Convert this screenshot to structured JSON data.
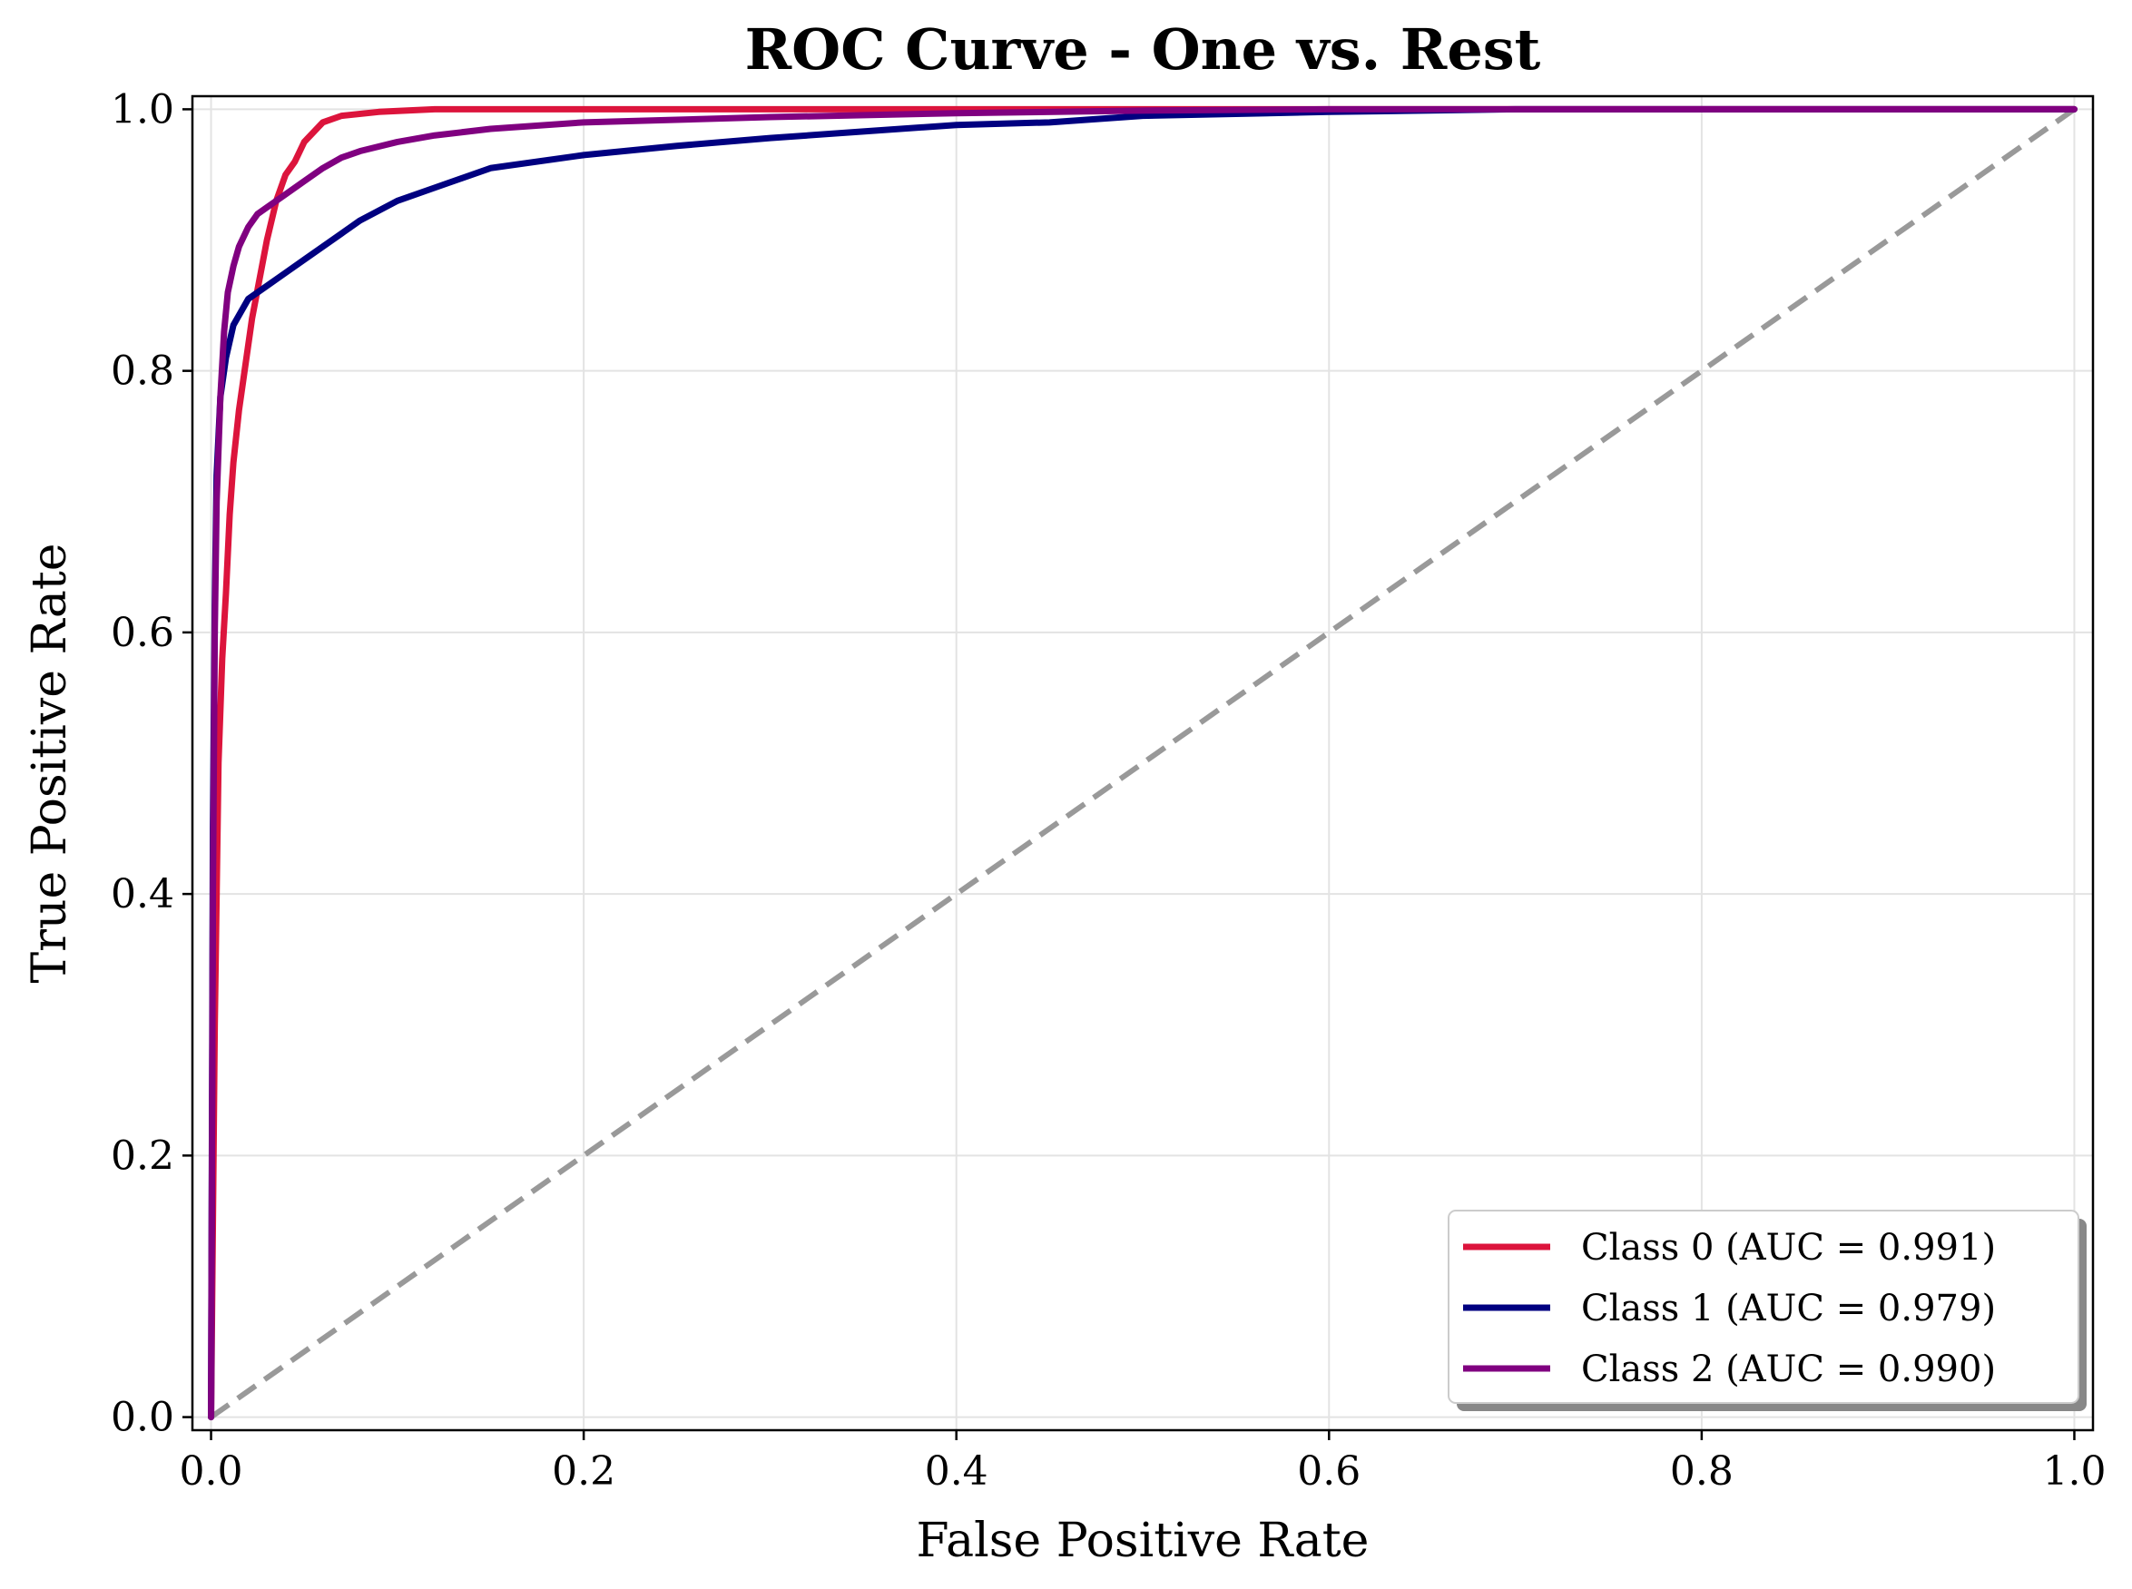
{
  "chart_data": {
    "type": "line",
    "title": "ROC Curve - One vs. Rest",
    "xlabel": "False Positive Rate",
    "ylabel": "True Positive Rate",
    "xlim": [
      -0.01,
      1.01
    ],
    "ylim": [
      -0.01,
      1.01
    ],
    "xticks": [
      "0.0",
      "0.2",
      "0.4",
      "0.6",
      "0.8",
      "1.0"
    ],
    "yticks": [
      "0.0",
      "0.2",
      "0.4",
      "0.6",
      "0.8",
      "1.0"
    ],
    "grid": true,
    "legend_position": "lower-right",
    "series": [
      {
        "name": "Class 0 (AUC = 0.991)",
        "color": "#dc143c",
        "points": [
          [
            0,
            0
          ],
          [
            0.002,
            0.3
          ],
          [
            0.004,
            0.5
          ],
          [
            0.006,
            0.58
          ],
          [
            0.008,
            0.63
          ],
          [
            0.01,
            0.69
          ],
          [
            0.012,
            0.73
          ],
          [
            0.015,
            0.77
          ],
          [
            0.018,
            0.8
          ],
          [
            0.022,
            0.84
          ],
          [
            0.026,
            0.87
          ],
          [
            0.03,
            0.9
          ],
          [
            0.035,
            0.93
          ],
          [
            0.04,
            0.95
          ],
          [
            0.045,
            0.96
          ],
          [
            0.05,
            0.975
          ],
          [
            0.06,
            0.99
          ],
          [
            0.07,
            0.995
          ],
          [
            0.09,
            0.998
          ],
          [
            0.12,
            1.0
          ],
          [
            1.0,
            1.0
          ]
        ]
      },
      {
        "name": "Class 1 (AUC = 0.979)",
        "color": "#000080",
        "points": [
          [
            0,
            0
          ],
          [
            0.001,
            0.45
          ],
          [
            0.002,
            0.62
          ],
          [
            0.003,
            0.72
          ],
          [
            0.005,
            0.78
          ],
          [
            0.008,
            0.81
          ],
          [
            0.012,
            0.835
          ],
          [
            0.02,
            0.855
          ],
          [
            0.03,
            0.865
          ],
          [
            0.04,
            0.875
          ],
          [
            0.05,
            0.885
          ],
          [
            0.06,
            0.895
          ],
          [
            0.07,
            0.905
          ],
          [
            0.08,
            0.915
          ],
          [
            0.1,
            0.93
          ],
          [
            0.12,
            0.94
          ],
          [
            0.15,
            0.955
          ],
          [
            0.2,
            0.965
          ],
          [
            0.25,
            0.972
          ],
          [
            0.3,
            0.978
          ],
          [
            0.35,
            0.983
          ],
          [
            0.4,
            0.988
          ],
          [
            0.45,
            0.99
          ],
          [
            0.5,
            0.995
          ],
          [
            0.6,
            0.998
          ],
          [
            0.7,
            1.0
          ],
          [
            1.0,
            1.0
          ]
        ]
      },
      {
        "name": "Class 2 (AUC = 0.990)",
        "color": "#800080",
        "points": [
          [
            0,
            0
          ],
          [
            0.001,
            0.4
          ],
          [
            0.002,
            0.6
          ],
          [
            0.003,
            0.7
          ],
          [
            0.005,
            0.78
          ],
          [
            0.007,
            0.83
          ],
          [
            0.009,
            0.86
          ],
          [
            0.012,
            0.88
          ],
          [
            0.015,
            0.895
          ],
          [
            0.02,
            0.91
          ],
          [
            0.025,
            0.92
          ],
          [
            0.03,
            0.925
          ],
          [
            0.04,
            0.935
          ],
          [
            0.05,
            0.945
          ],
          [
            0.06,
            0.955
          ],
          [
            0.07,
            0.963
          ],
          [
            0.08,
            0.968
          ],
          [
            0.1,
            0.975
          ],
          [
            0.12,
            0.98
          ],
          [
            0.15,
            0.985
          ],
          [
            0.2,
            0.99
          ],
          [
            0.3,
            0.994
          ],
          [
            0.4,
            0.997
          ],
          [
            0.5,
            0.999
          ],
          [
            0.6,
            1.0
          ],
          [
            1.0,
            1.0
          ]
        ]
      }
    ],
    "reference_line": {
      "points": [
        [
          0,
          0
        ],
        [
          1,
          1
        ]
      ],
      "color": "#999999",
      "style": "dashed"
    }
  }
}
